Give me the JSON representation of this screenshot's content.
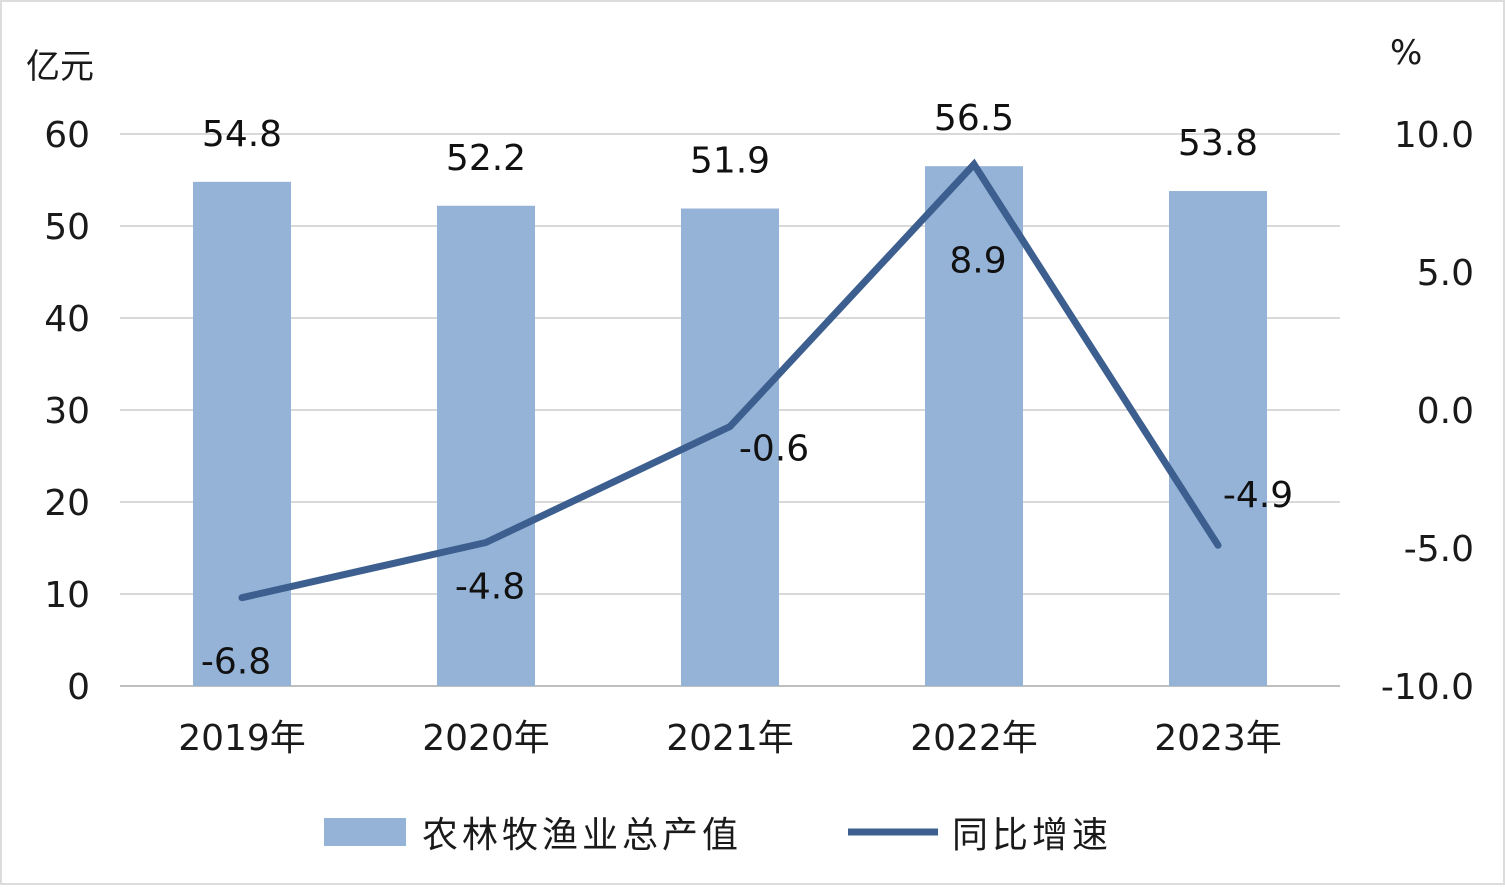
{
  "chart_data": {
    "type": "bar",
    "categories": [
      "2019年",
      "2020年",
      "2021年",
      "2022年",
      "2023年"
    ],
    "series": [
      {
        "name": "农林牧渔业总产值",
        "type": "bar",
        "axis": "left",
        "values": [
          54.8,
          52.2,
          51.9,
          56.5,
          53.8
        ],
        "labels": [
          "54.8",
          "52.2",
          "51.9",
          "56.5",
          "53.8"
        ],
        "color": "#95b3d7"
      },
      {
        "name": "同比增速",
        "type": "line",
        "axis": "right",
        "values": [
          -6.8,
          -4.8,
          -0.6,
          8.9,
          -4.9
        ],
        "labels": [
          "-6.8",
          "-4.8",
          "-0.6",
          "8.9",
          "-4.9"
        ],
        "color": "#3d5f8f"
      }
    ],
    "left_axis": {
      "unit": "亿元",
      "ylim": [
        0,
        60
      ],
      "ticks": [
        0,
        10,
        20,
        30,
        40,
        50,
        60
      ],
      "tick_labels": [
        "0",
        "10",
        "20",
        "30",
        "40",
        "50",
        "60"
      ]
    },
    "right_axis": {
      "unit": "%",
      "ylim": [
        -10,
        10
      ],
      "ticks": [
        -10,
        -5,
        0,
        5,
        10
      ],
      "tick_labels": [
        "-10.0",
        "-5.0",
        "0.0",
        "5.0",
        "10.0"
      ]
    },
    "grid": true,
    "legend_position": "bottom"
  }
}
